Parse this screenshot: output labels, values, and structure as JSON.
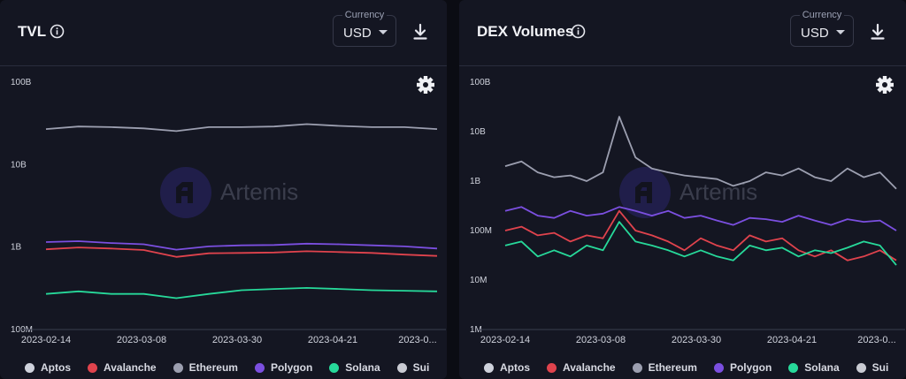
{
  "colors": {
    "Aptos": "#cfd2dc",
    "Avalanche": "#e0434d",
    "Ethereum": "#9c9fb0",
    "Polygon": "#7b4fe0",
    "Solana": "#27d99a",
    "Sui": "#c9cbd3"
  },
  "panels": [
    {
      "title": "TVL",
      "currency_label": "Currency",
      "currency_value": "USD",
      "watermark": "Artemis"
    },
    {
      "title": "DEX Volumes",
      "currency_label": "Currency",
      "currency_value": "USD",
      "watermark": "Artemis"
    }
  ],
  "legend": [
    "Aptos",
    "Avalanche",
    "Ethereum",
    "Polygon",
    "Solana",
    "Sui"
  ],
  "chart_data": [
    {
      "type": "line",
      "title": "TVL",
      "y_scale": "log",
      "ylim": [
        100000000,
        100000000000
      ],
      "yticks": [
        "100M",
        "1B",
        "10B",
        "100B"
      ],
      "x_tick_labels": [
        "2023-02-14",
        "2023-03-08",
        "2023-03-30",
        "2023-04-21",
        "2023-0..."
      ],
      "x": [
        "2023-02-14",
        "2023-02-21",
        "2023-02-28",
        "2023-03-07",
        "2023-03-14",
        "2023-03-21",
        "2023-03-28",
        "2023-04-04",
        "2023-04-11",
        "2023-04-18",
        "2023-04-25",
        "2023-05-02",
        "2023-05-09"
      ],
      "series": [
        {
          "name": "Ethereum",
          "values": [
            27000000000,
            29000000000,
            28500000000,
            27500000000,
            25500000000,
            28500000000,
            28500000000,
            29000000000,
            31000000000,
            29500000000,
            28500000000,
            28500000000,
            27000000000
          ]
        },
        {
          "name": "Polygon",
          "values": [
            1150000000,
            1180000000,
            1120000000,
            1080000000,
            930000000,
            1020000000,
            1050000000,
            1060000000,
            1100000000,
            1080000000,
            1050000000,
            1020000000,
            960000000
          ]
        },
        {
          "name": "Avalanche",
          "values": [
            940000000,
            990000000,
            960000000,
            920000000,
            760000000,
            840000000,
            850000000,
            860000000,
            890000000,
            870000000,
            850000000,
            810000000,
            780000000
          ]
        },
        {
          "name": "Solana",
          "values": [
            270000000,
            290000000,
            270000000,
            270000000,
            240000000,
            270000000,
            300000000,
            310000000,
            320000000,
            310000000,
            300000000,
            295000000,
            290000000
          ]
        }
      ]
    },
    {
      "type": "line",
      "title": "DEX Volumes",
      "y_scale": "log",
      "ylim": [
        1000000,
        100000000000
      ],
      "yticks": [
        "1M",
        "10M",
        "100M",
        "1B",
        "10B",
        "100B"
      ],
      "x_tick_labels": [
        "2023-02-14",
        "2023-03-08",
        "2023-03-30",
        "2023-04-21",
        "2023-0..."
      ],
      "x": [
        "2023-02-14",
        "2023-02-17",
        "2023-02-21",
        "2023-02-24",
        "2023-02-28",
        "2023-03-03",
        "2023-03-07",
        "2023-03-10",
        "2023-03-14",
        "2023-03-17",
        "2023-03-21",
        "2023-03-24",
        "2023-03-28",
        "2023-03-31",
        "2023-04-04",
        "2023-04-07",
        "2023-04-11",
        "2023-04-14",
        "2023-04-18",
        "2023-04-21",
        "2023-04-25",
        "2023-04-28",
        "2023-05-02",
        "2023-05-05",
        "2023-05-09"
      ],
      "series": [
        {
          "name": "Ethereum",
          "values": [
            2000000000,
            2500000000,
            1500000000,
            1200000000,
            1300000000,
            1000000000,
            1500000000,
            20000000000,
            3000000000,
            1800000000,
            1500000000,
            1300000000,
            1200000000,
            1100000000,
            800000000,
            1000000000,
            1500000000,
            1300000000,
            1800000000,
            1200000000,
            1000000000,
            1800000000,
            1200000000,
            1500000000,
            700000000
          ]
        },
        {
          "name": "Polygon",
          "values": [
            250000000,
            300000000,
            200000000,
            180000000,
            250000000,
            200000000,
            220000000,
            300000000,
            250000000,
            200000000,
            250000000,
            180000000,
            200000000,
            160000000,
            130000000,
            180000000,
            170000000,
            150000000,
            200000000,
            160000000,
            130000000,
            170000000,
            150000000,
            160000000,
            100000000
          ]
        },
        {
          "name": "Avalanche",
          "values": [
            100000000,
            120000000,
            80000000,
            90000000,
            60000000,
            80000000,
            70000000,
            250000000,
            100000000,
            80000000,
            60000000,
            40000000,
            70000000,
            50000000,
            40000000,
            80000000,
            60000000,
            70000000,
            40000000,
            30000000,
            40000000,
            25000000,
            30000000,
            40000000,
            25000000
          ]
        },
        {
          "name": "Solana",
          "values": [
            50000000,
            60000000,
            30000000,
            40000000,
            30000000,
            50000000,
            40000000,
            150000000,
            60000000,
            50000000,
            40000000,
            30000000,
            40000000,
            30000000,
            25000000,
            50000000,
            40000000,
            45000000,
            30000000,
            40000000,
            35000000,
            45000000,
            60000000,
            50000000,
            20000000
          ]
        }
      ]
    }
  ]
}
